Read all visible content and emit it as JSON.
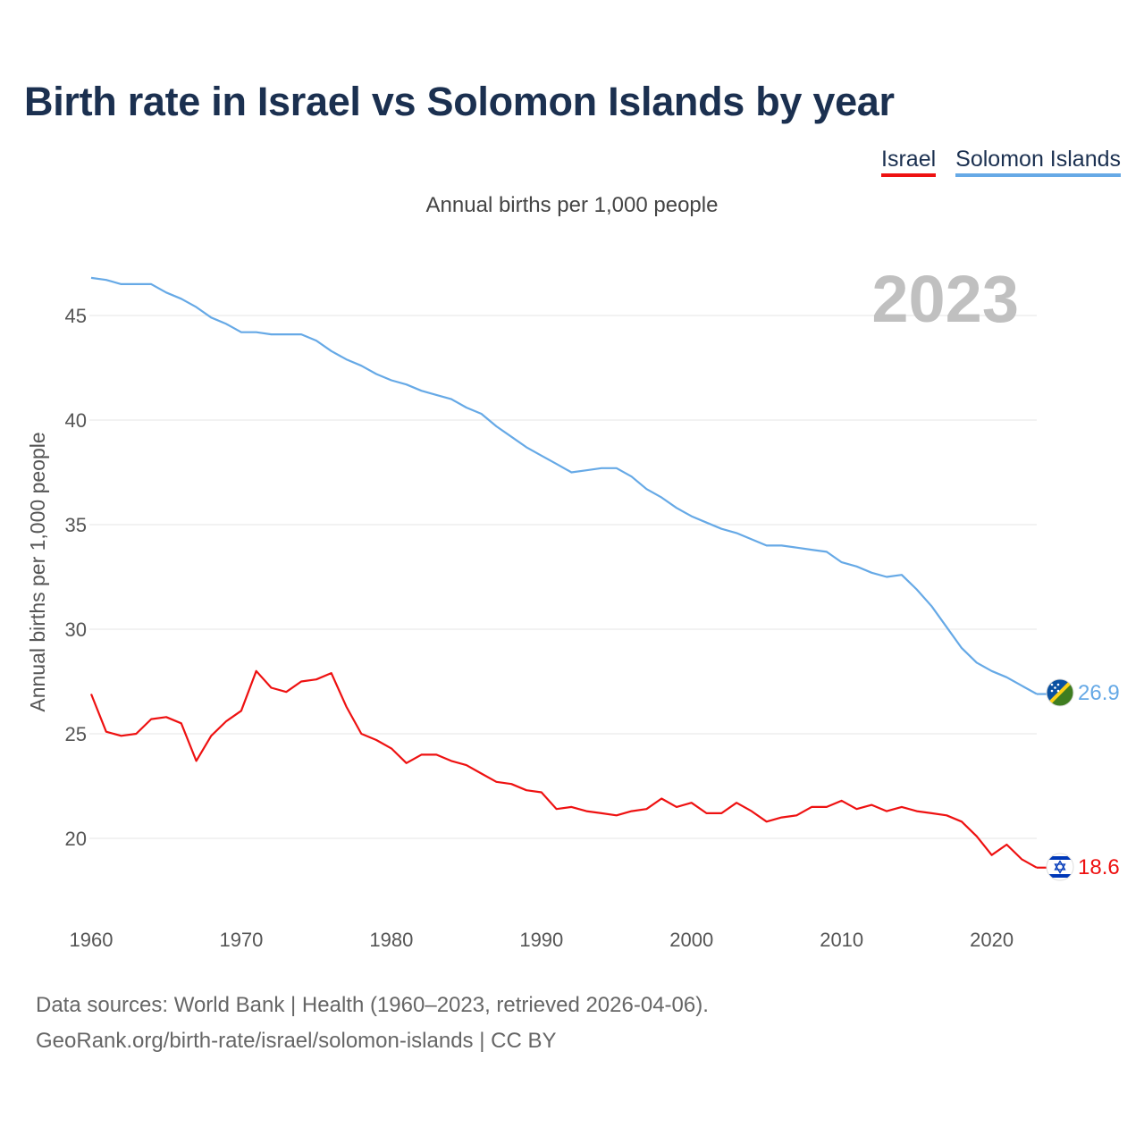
{
  "title": "Birth rate in Israel vs Solomon Islands by year",
  "subtitle": "Annual births per 1,000 people",
  "watermark_year": "2023",
  "footer": {
    "line1": "Data sources: World Bank | Health (1960–2023, retrieved 2026-04-06).",
    "line2": "GeoRank.org/birth-rate/israel/solomon-islands | CC BY"
  },
  "chart_data": {
    "type": "line",
    "title": "Birth rate in Israel vs Solomon Islands by year",
    "xlabel": "",
    "ylabel": "Annual births per 1,000 people",
    "xlim": [
      1960,
      2023
    ],
    "ylim": [
      16.5,
      47.5
    ],
    "x_ticks": [
      1960,
      1970,
      1980,
      1990,
      2000,
      2010,
      2020
    ],
    "y_ticks": [
      20,
      25,
      30,
      35,
      40,
      45
    ],
    "grid": true,
    "legend_position": "top-right",
    "x": [
      1960,
      1961,
      1962,
      1963,
      1964,
      1965,
      1966,
      1967,
      1968,
      1969,
      1970,
      1971,
      1972,
      1973,
      1974,
      1975,
      1976,
      1977,
      1978,
      1979,
      1980,
      1981,
      1982,
      1983,
      1984,
      1985,
      1986,
      1987,
      1988,
      1989,
      1990,
      1991,
      1992,
      1993,
      1994,
      1995,
      1996,
      1997,
      1998,
      1999,
      2000,
      2001,
      2002,
      2003,
      2004,
      2005,
      2006,
      2007,
      2008,
      2009,
      2010,
      2011,
      2012,
      2013,
      2014,
      2015,
      2016,
      2017,
      2018,
      2019,
      2020,
      2021,
      2022,
      2023
    ],
    "series": [
      {
        "name": "Israel",
        "color": "#ee1111",
        "end_label": "18.6",
        "values": [
          26.9,
          25.1,
          24.9,
          25.0,
          25.7,
          25.8,
          25.5,
          23.7,
          24.9,
          25.6,
          26.1,
          28.0,
          27.2,
          27.0,
          27.5,
          27.6,
          27.9,
          26.3,
          25.0,
          24.7,
          24.3,
          23.6,
          24.0,
          24.0,
          23.7,
          23.5,
          23.1,
          22.7,
          22.6,
          22.3,
          22.2,
          21.4,
          21.5,
          21.3,
          21.2,
          21.1,
          21.3,
          21.4,
          21.9,
          21.5,
          21.7,
          21.2,
          21.2,
          21.7,
          21.3,
          20.8,
          21.0,
          21.1,
          21.5,
          21.5,
          21.8,
          21.4,
          21.6,
          21.3,
          21.5,
          21.3,
          21.2,
          21.1,
          20.8,
          20.1,
          19.2,
          19.7,
          19.0,
          18.6
        ]
      },
      {
        "name": "Solomon Islands",
        "color": "#66a9e6",
        "end_label": "26.9",
        "values": [
          46.8,
          46.7,
          46.5,
          46.5,
          46.5,
          46.1,
          45.8,
          45.4,
          44.9,
          44.6,
          44.2,
          44.2,
          44.1,
          44.1,
          44.1,
          43.8,
          43.3,
          42.9,
          42.6,
          42.2,
          41.9,
          41.7,
          41.4,
          41.2,
          41.0,
          40.6,
          40.3,
          39.7,
          39.2,
          38.7,
          38.3,
          37.9,
          37.5,
          37.6,
          37.7,
          37.7,
          37.3,
          36.7,
          36.3,
          35.8,
          35.4,
          35.1,
          34.8,
          34.6,
          34.3,
          34.0,
          34.0,
          33.9,
          33.8,
          33.7,
          33.2,
          33.0,
          32.7,
          32.5,
          32.6,
          31.9,
          31.1,
          30.1,
          29.1,
          28.4,
          28.0,
          27.7,
          27.3,
          26.9
        ]
      }
    ]
  }
}
